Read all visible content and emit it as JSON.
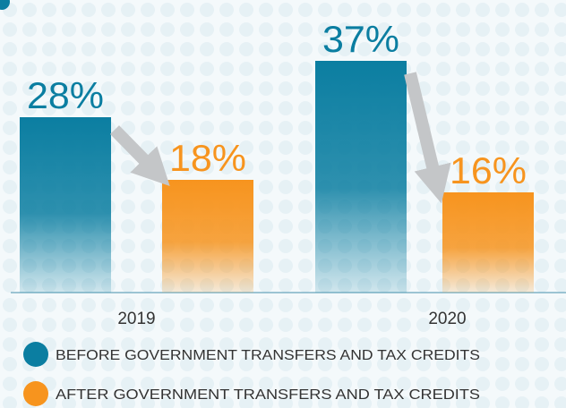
{
  "chart_data": {
    "type": "bar",
    "categories": [
      "2019",
      "2020"
    ],
    "series": [
      {
        "name": "BEFORE GOVERNMENT TRANSFERS AND TAX CREDITS",
        "color": "#0b7ea1",
        "values": [
          28,
          37
        ],
        "value_labels": [
          "28%",
          "37%"
        ]
      },
      {
        "name": "AFTER GOVERNMENT TRANSFERS AND TAX CREDITS",
        "color": "#f7941e",
        "values": [
          18,
          16
        ],
        "value_labels": [
          "18%",
          "16%"
        ]
      }
    ]
  }
}
